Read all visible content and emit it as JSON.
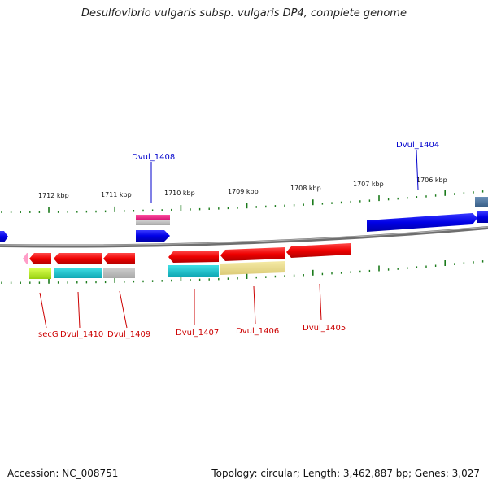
{
  "title": "Desulfovibrio vulgaris subsp. vulgaris DP4, complete genome",
  "footer": {
    "accession": "Accession: NC_008751",
    "summary": "Topology: circular; Length: 3,462,887 bp; Genes: 3,027"
  },
  "scale_labels": [
    "1712 kbp",
    "1711 kbp",
    "1710 kbp",
    "1709 kbp",
    "1708 kbp",
    "1707 kbp",
    "1706 kbp"
  ],
  "gene_labels": {
    "forward": [
      "Dvul_1408",
      "Dvul_1404"
    ],
    "reverse": [
      "secG",
      "Dvul_1410",
      "Dvul_1409",
      "Dvul_1407",
      "Dvul_1406",
      "Dvul_1405"
    ]
  },
  "colors": {
    "forward_label": "#0000cc",
    "reverse_label": "#cc0000",
    "forward_gene": "#0000ee",
    "reverse_gene": "#ee0000",
    "backbone": "#808080",
    "tick": "#1a7a1a"
  }
}
